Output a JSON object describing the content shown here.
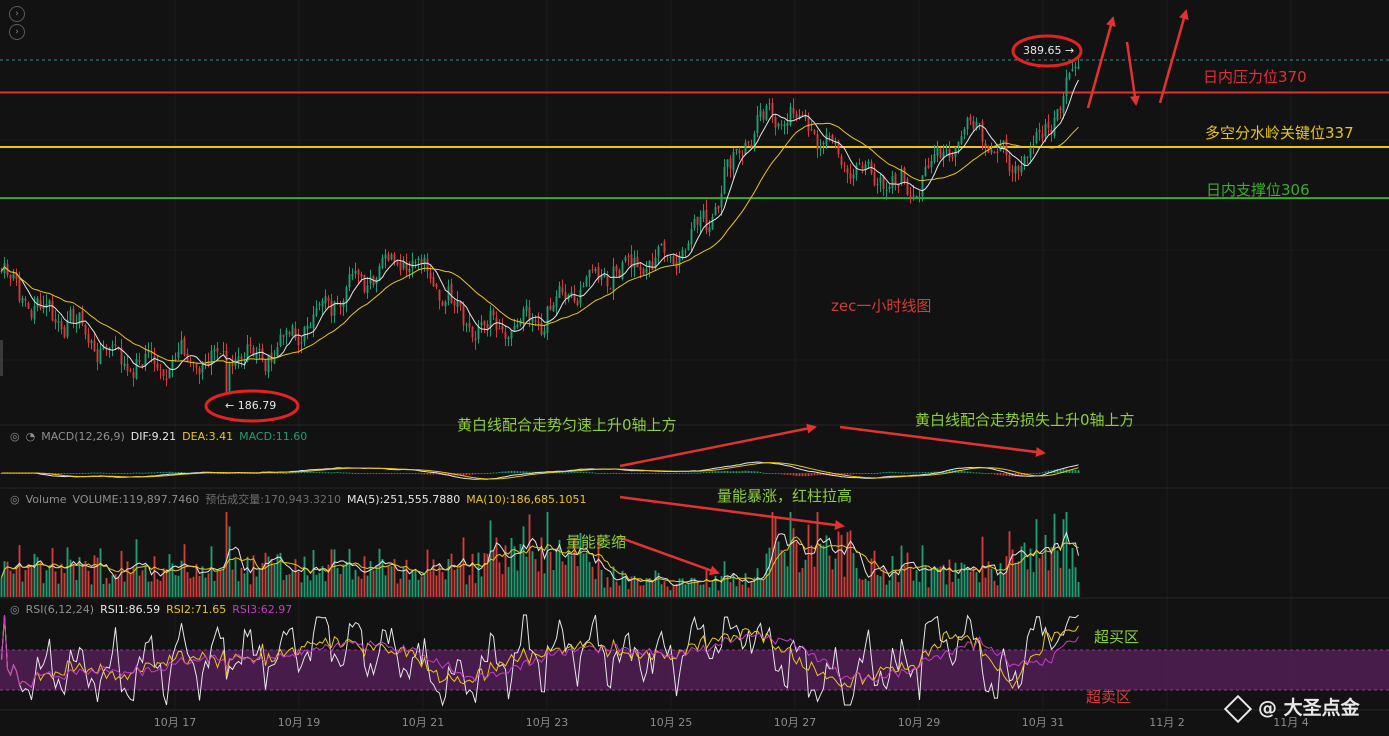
{
  "colors": {
    "background": "#121212",
    "up": "#1f9e74",
    "down": "#d13c3c",
    "ma_fast": "#e6e6e6",
    "ma_slow": "#e8c619",
    "resistance": "#e0303a",
    "pivot": "#e8c619",
    "support": "#3aad2c",
    "annotation_green": "#8fcf3a",
    "rsi_band": "#5a1f5e"
  },
  "nav_icons": [
    "chevron-right-icon",
    "chevron-right-icon"
  ],
  "price_panel": {
    "title": "zec一小时线图",
    "high_marker": "389.65 →",
    "low_marker": "← 186.79",
    "levels": [
      {
        "label": "日内压力位370",
        "value": 370
      },
      {
        "label": "多空分水岭关键位337",
        "value": 337
      },
      {
        "label": "日内支撑位306",
        "value": 306
      }
    ]
  },
  "macd_panel": {
    "name": "MACD(12,26,9)",
    "dif": "DIF:9.21",
    "dea": "DEA:3.41",
    "macd": "MACD:11.60"
  },
  "volume_panel": {
    "name": "Volume",
    "volume": "VOLUME:119,897.7460",
    "estimated": "预估成交量:170,943.3210",
    "ma5": "MA(5):251,555.7880",
    "ma10": "MA(10):186,685.1051"
  },
  "rsi_panel": {
    "name": "RSI(6,12,24)",
    "rsi1": "RSI1:86.59",
    "rsi2": "RSI2:71.65",
    "rsi3": "RSI3:62.97",
    "overbought": "超买区",
    "oversold": "超卖区"
  },
  "annotations": {
    "macd_left": "黄白线配合走势匀速上升0轴上方",
    "macd_right": "黄白线配合走势损失上升0轴上方",
    "volume_surge": "量能暴涨，红柱拉高",
    "volume_shrink": "量能萎缩"
  },
  "chart_data": {
    "type": "candlestick",
    "title": "zec一小时线图",
    "x_ticks": [
      "10月 17",
      "10月 19",
      "10月 21",
      "10月 23",
      "10月 25",
      "10月 27",
      "10月 29",
      "10月 31",
      "11月 2",
      "11月 4"
    ],
    "low": 186.79,
    "high": 389.65,
    "close_path": [
      {
        "date": "10月 16",
        "close": 262
      },
      {
        "date": "10月 16 12h",
        "close": 240
      },
      {
        "date": "10月 17",
        "close": 232
      },
      {
        "date": "10月 17 12h",
        "close": 215
      },
      {
        "date": "10月 18",
        "close": 205
      },
      {
        "date": "10月 18 12h",
        "close": 207
      },
      {
        "date": "10月 19",
        "close": 208
      },
      {
        "date": "10月 19 12h",
        "close": 210
      },
      {
        "date": "10月 20",
        "close": 212
      },
      {
        "date": "10月 20 12h",
        "close": 228
      },
      {
        "date": "10月 21",
        "close": 248
      },
      {
        "date": "10月 21 12h",
        "close": 262
      },
      {
        "date": "10月 22",
        "close": 272
      },
      {
        "date": "10月 22 12h",
        "close": 252
      },
      {
        "date": "10月 23",
        "close": 228
      },
      {
        "date": "10月 23 12h",
        "close": 226
      },
      {
        "date": "10月 24",
        "close": 232
      },
      {
        "date": "10月 24 12h",
        "close": 250
      },
      {
        "date": "10月 25",
        "close": 262
      },
      {
        "date": "10月 25 12h",
        "close": 266
      },
      {
        "date": "10月 26",
        "close": 272
      },
      {
        "date": "10月 26 12h",
        "close": 295
      },
      {
        "date": "10月 27",
        "close": 340
      },
      {
        "date": "10月 27 12h",
        "close": 358
      },
      {
        "date": "10月 28",
        "close": 350
      },
      {
        "date": "10月 28 12h",
        "close": 328
      },
      {
        "date": "10月 29",
        "close": 318
      },
      {
        "date": "10月 29 12h",
        "close": 310
      },
      {
        "date": "10月 30",
        "close": 335
      },
      {
        "date": "10月 30 12h",
        "close": 352
      },
      {
        "date": "10月 31",
        "close": 322
      },
      {
        "date": "10月 31 12h",
        "close": 345
      },
      {
        "date": "11月 1",
        "close": 389.65
      }
    ],
    "horizontal_levels": [
      370,
      337,
      306
    ]
  }
}
